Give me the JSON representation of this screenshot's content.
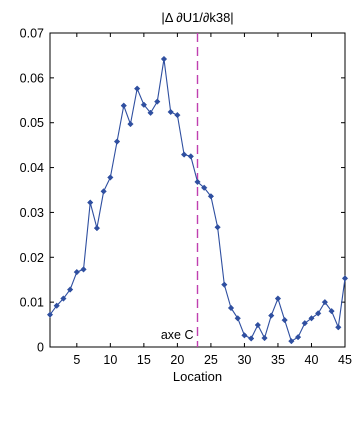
{
  "chart_data": {
    "type": "line",
    "title": "|Δ ∂U1/∂k38|",
    "xlabel": "Location",
    "ylabel": "",
    "xlim": [
      1,
      45
    ],
    "ylim": [
      0,
      0.07
    ],
    "xticks": [
      5,
      10,
      15,
      20,
      25,
      30,
      35,
      40,
      45
    ],
    "yticks": [
      0,
      0.01,
      0.02,
      0.03,
      0.04,
      0.05,
      0.06,
      0.07
    ],
    "ytick_labels": [
      "0",
      "0.01",
      "0.02",
      "0.03",
      "0.04",
      "0.05",
      "0.06",
      "0.07"
    ],
    "grid": false,
    "series": [
      {
        "color": "#2f4fa0",
        "marker": "diamond",
        "x": [
          1,
          2,
          3,
          4,
          5,
          6,
          7,
          8,
          9,
          10,
          11,
          12,
          13,
          14,
          15,
          16,
          17,
          18,
          19,
          20,
          21,
          22,
          23,
          24,
          25,
          26,
          27,
          28,
          29,
          30,
          31,
          32,
          33,
          34,
          35,
          36,
          37,
          38,
          39,
          40,
          41,
          42,
          43,
          44,
          45
        ],
        "values": [
          0.0072,
          0.0092,
          0.0108,
          0.0128,
          0.0167,
          0.0173,
          0.0322,
          0.0265,
          0.0347,
          0.0378,
          0.0458,
          0.0538,
          0.0497,
          0.0576,
          0.054,
          0.0522,
          0.0547,
          0.0642,
          0.0524,
          0.0517,
          0.0429,
          0.0425,
          0.0368,
          0.0355,
          0.0336,
          0.0267,
          0.0139,
          0.0087,
          0.0064,
          0.0026,
          0.0019,
          0.0049,
          0.002,
          0.007,
          0.0108,
          0.006,
          0.0013,
          0.0022,
          0.0053,
          0.0064,
          0.0075,
          0.01,
          0.008,
          0.0044,
          0.0153
        ]
      }
    ],
    "vline": {
      "x": 23,
      "color": "#c040b0",
      "style": "dashed",
      "label": "axe C"
    }
  }
}
